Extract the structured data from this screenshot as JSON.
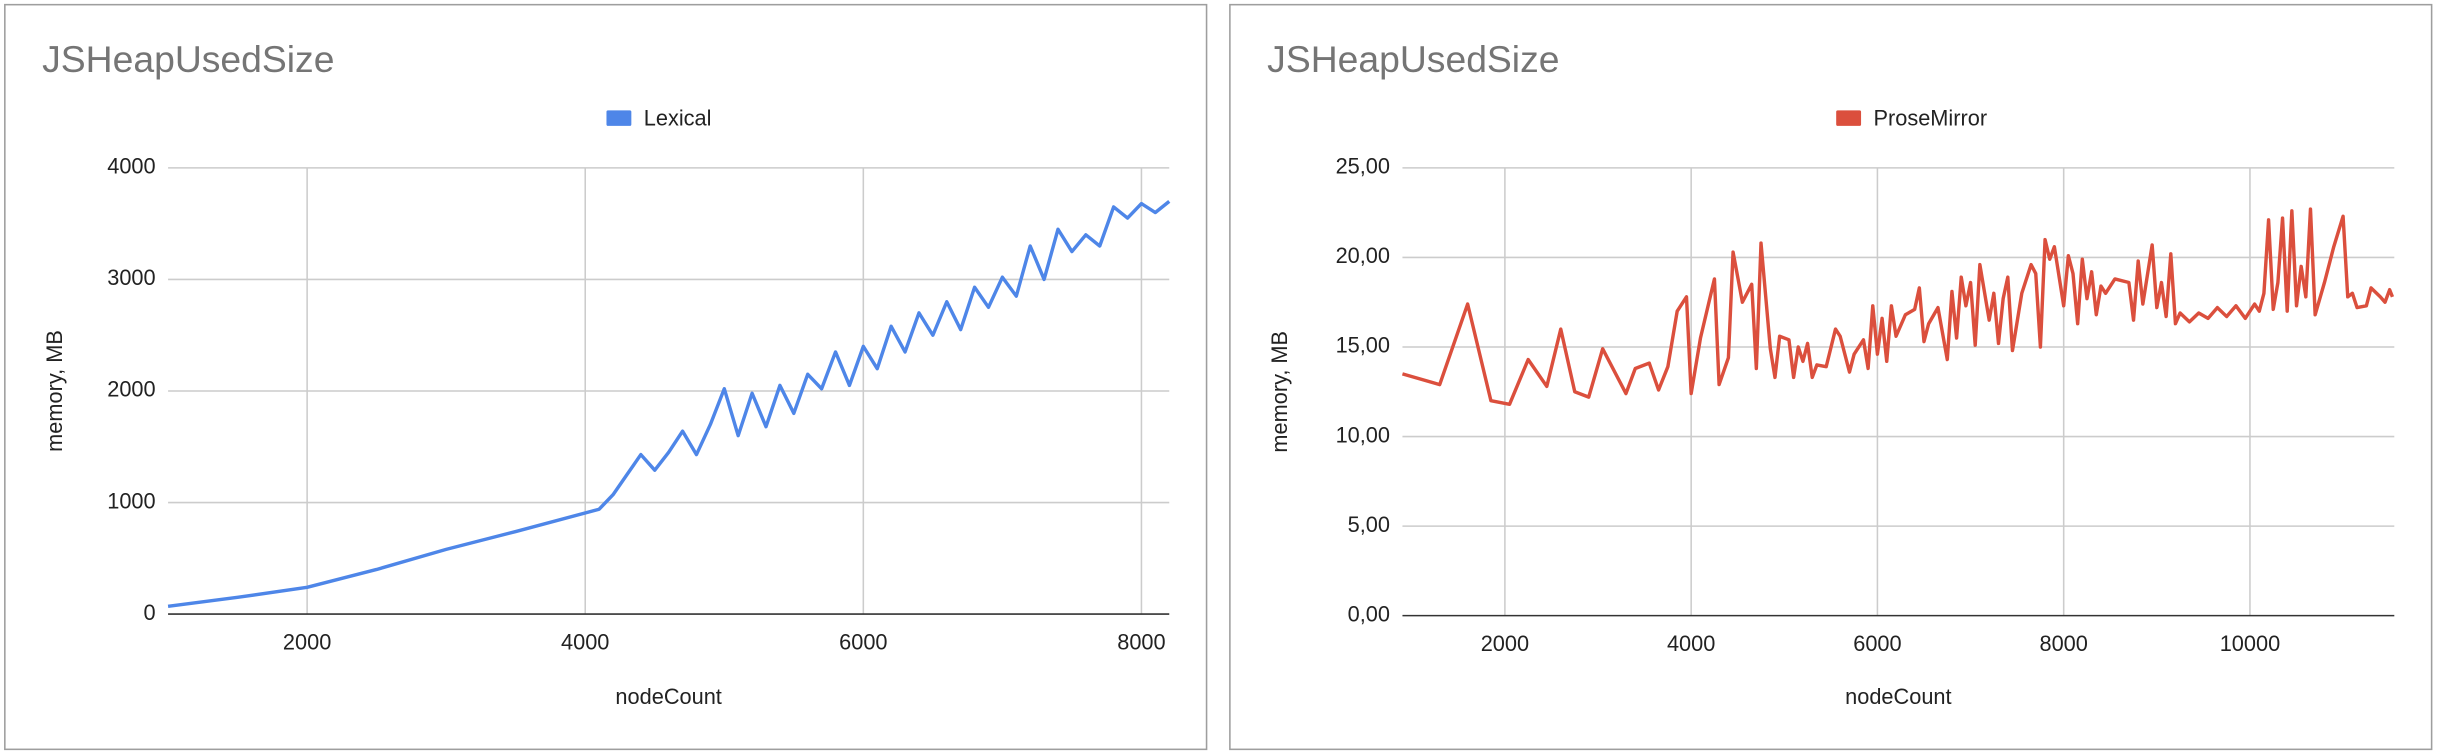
{
  "chart_data": [
    {
      "type": "line",
      "title": "JSHeapUsedSize",
      "x_label": "nodeCount",
      "y_label": "memory, MB",
      "xlim": [
        1000,
        8200
      ],
      "xticks": [
        2000,
        4000,
        6000,
        8000
      ],
      "ylim": [
        0,
        4000
      ],
      "yticks": [
        0,
        1000,
        2000,
        3000,
        4000
      ],
      "grid": true,
      "legend": "top",
      "x": [
        1000,
        1500,
        2000,
        2500,
        3000,
        3500,
        4100,
        4200,
        4300,
        4400,
        4500,
        4600,
        4700,
        4800,
        4900,
        5000,
        5100,
        5200,
        5300,
        5400,
        5500,
        5600,
        5700,
        5800,
        5900,
        6000,
        6100,
        6200,
        6300,
        6400,
        6500,
        6600,
        6700,
        6800,
        6900,
        7000,
        7100,
        7200,
        7300,
        7400,
        7500,
        7600,
        7700,
        7800,
        7900,
        8000,
        8100,
        8200
      ],
      "series": [
        {
          "name": "Lexical",
          "color": "#4e86e8",
          "values": [
            70,
            150,
            240,
            400,
            580,
            740,
            940,
            1070,
            1250,
            1430,
            1290,
            1450,
            1640,
            1430,
            1700,
            2020,
            1600,
            1980,
            1680,
            2050,
            1800,
            2150,
            2020,
            2350,
            2050,
            2400,
            2200,
            2580,
            2350,
            2700,
            2500,
            2800,
            2550,
            2930,
            2750,
            3020,
            2850,
            3300,
            3000,
            3450,
            3250,
            3400,
            3300,
            3650,
            3550,
            3680,
            3600,
            3700
          ]
        }
      ]
    },
    {
      "type": "line",
      "title": "JSHeapUsedSize",
      "x_label": "nodeCount",
      "y_label": "memory, MB",
      "xlim": [
        900,
        11550
      ],
      "xticks": [
        2000,
        4000,
        6000,
        8000,
        10000
      ],
      "ylim": [
        0,
        25
      ],
      "yticks": [
        {
          "value": 0,
          "label": "0,00"
        },
        {
          "value": 5,
          "label": "5,00"
        },
        {
          "value": 10,
          "label": "10,00"
        },
        {
          "value": 15,
          "label": "15,00"
        },
        {
          "value": 20,
          "label": "20,00"
        },
        {
          "value": 25,
          "label": "25,00"
        }
      ],
      "grid": true,
      "legend": "top",
      "x": [
        900,
        1300,
        1600,
        1850,
        2050,
        2250,
        2450,
        2600,
        2750,
        2900,
        3050,
        3300,
        3400,
        3550,
        3650,
        3750,
        3850,
        3950,
        4000,
        4100,
        4250,
        4300,
        4400,
        4450,
        4550,
        4650,
        4700,
        4750,
        4850,
        4900,
        4950,
        5050,
        5100,
        5150,
        5200,
        5250,
        5300,
        5350,
        5450,
        5550,
        5600,
        5700,
        5750,
        5850,
        5900,
        5950,
        6000,
        6050,
        6100,
        6150,
        6200,
        6300,
        6400,
        6450,
        6500,
        6550,
        6650,
        6750,
        6800,
        6850,
        6900,
        6950,
        7000,
        7050,
        7100,
        7200,
        7250,
        7300,
        7350,
        7400,
        7450,
        7550,
        7650,
        7700,
        7750,
        7800,
        7850,
        7900,
        8000,
        8050,
        8100,
        8150,
        8200,
        8250,
        8300,
        8350,
        8400,
        8450,
        8550,
        8700,
        8750,
        8800,
        8850,
        8950,
        9000,
        9050,
        9100,
        9150,
        9200,
        9250,
        9350,
        9450,
        9550,
        9650,
        9750,
        9850,
        9950,
        10050,
        10100,
        10150,
        10200,
        10250,
        10300,
        10350,
        10400,
        10450,
        10500,
        10550,
        10600,
        10650,
        10700,
        10800,
        10900,
        11000,
        11050,
        11100,
        11150,
        11250,
        11300,
        11400,
        11450,
        11500,
        11530
      ],
      "series": [
        {
          "name": "ProseMirror",
          "color": "#db4f3d",
          "values": [
            13.5,
            12.9,
            17.4,
            12.0,
            11.8,
            14.3,
            12.8,
            16.0,
            12.5,
            12.2,
            14.9,
            12.4,
            13.8,
            14.1,
            12.6,
            13.9,
            17.0,
            17.8,
            12.4,
            15.5,
            18.8,
            12.9,
            14.4,
            20.3,
            17.5,
            18.5,
            13.8,
            20.8,
            14.9,
            13.3,
            15.6,
            15.4,
            13.3,
            15.0,
            14.2,
            15.2,
            13.3,
            14.0,
            13.9,
            16.0,
            15.6,
            13.6,
            14.6,
            15.4,
            13.8,
            17.3,
            14.6,
            16.6,
            14.2,
            17.3,
            15.6,
            16.8,
            17.1,
            18.3,
            15.3,
            16.3,
            17.2,
            14.3,
            18.1,
            15.5,
            18.9,
            17.3,
            18.6,
            15.1,
            19.6,
            16.5,
            18.0,
            15.2,
            17.7,
            18.9,
            14.8,
            18.0,
            19.6,
            19.1,
            15.0,
            21.0,
            19.9,
            20.6,
            17.3,
            20.1,
            19.1,
            16.3,
            19.9,
            17.7,
            19.2,
            16.8,
            18.4,
            18.0,
            18.8,
            18.6,
            16.5,
            19.8,
            17.4,
            20.7,
            17.2,
            18.6,
            16.7,
            20.2,
            16.3,
            16.9,
            16.4,
            16.9,
            16.6,
            17.2,
            16.7,
            17.3,
            16.6,
            17.4,
            17.0,
            18.0,
            22.1,
            17.1,
            18.6,
            22.2,
            17.0,
            22.6,
            17.3,
            19.5,
            17.8,
            22.7,
            16.8,
            18.6,
            20.6,
            22.3,
            17.8,
            18.0,
            17.2,
            17.3,
            18.3,
            17.8,
            17.5,
            18.2,
            17.8
          ]
        }
      ]
    }
  ]
}
